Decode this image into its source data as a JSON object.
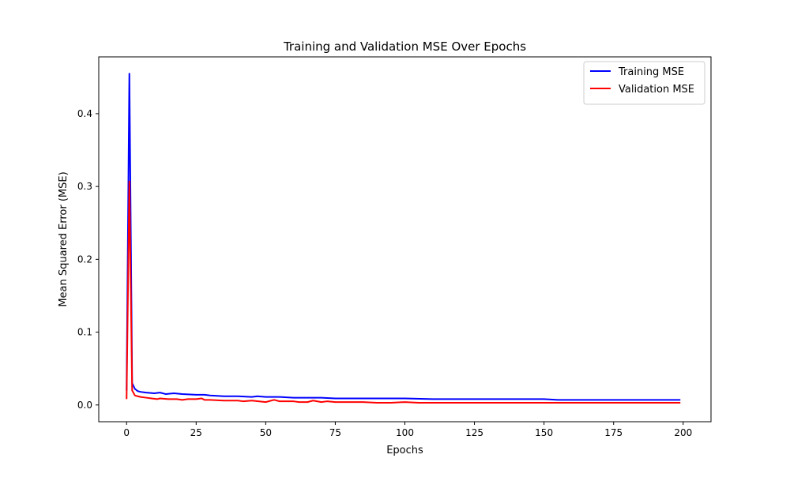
{
  "chart_data": {
    "type": "line",
    "title": "Training and Validation MSE Over Epochs",
    "xlabel": "Epochs",
    "ylabel": "Mean Squared Error (MSE)",
    "xlim": [
      -10,
      210
    ],
    "ylim": [
      -0.023,
      0.478
    ],
    "xticks": [
      0,
      25,
      50,
      75,
      100,
      125,
      150,
      175,
      200
    ],
    "yticks": [
      0.0,
      0.1,
      0.2,
      0.3,
      0.4
    ],
    "xtick_labels": [
      "0",
      "25",
      "50",
      "75",
      "100",
      "125",
      "150",
      "175",
      "200"
    ],
    "ytick_labels": [
      "0.0",
      "0.1",
      "0.2",
      "0.3",
      "0.4"
    ],
    "grid": false,
    "legend_position": "top-right",
    "series": [
      {
        "name": "Training MSE",
        "color": "#0000ff",
        "points": [
          [
            0,
            0.02
          ],
          [
            1,
            0.455
          ],
          [
            2,
            0.03
          ],
          [
            3,
            0.022
          ],
          [
            4,
            0.019
          ],
          [
            5,
            0.018
          ],
          [
            7,
            0.017
          ],
          [
            10,
            0.016
          ],
          [
            12,
            0.017
          ],
          [
            14,
            0.015
          ],
          [
            17,
            0.016
          ],
          [
            20,
            0.015
          ],
          [
            25,
            0.014
          ],
          [
            28,
            0.014
          ],
          [
            30,
            0.013
          ],
          [
            35,
            0.012
          ],
          [
            40,
            0.012
          ],
          [
            45,
            0.011
          ],
          [
            47,
            0.012
          ],
          [
            50,
            0.011
          ],
          [
            55,
            0.011
          ],
          [
            60,
            0.01
          ],
          [
            65,
            0.01
          ],
          [
            70,
            0.01
          ],
          [
            75,
            0.009
          ],
          [
            80,
            0.009
          ],
          [
            85,
            0.009
          ],
          [
            90,
            0.009
          ],
          [
            95,
            0.009
          ],
          [
            100,
            0.009
          ],
          [
            110,
            0.008
          ],
          [
            120,
            0.008
          ],
          [
            125,
            0.008
          ],
          [
            130,
            0.008
          ],
          [
            140,
            0.008
          ],
          [
            150,
            0.008
          ],
          [
            155,
            0.007
          ],
          [
            160,
            0.007
          ],
          [
            170,
            0.007
          ],
          [
            180,
            0.007
          ],
          [
            190,
            0.007
          ],
          [
            199,
            0.007
          ]
        ]
      },
      {
        "name": "Validation MSE",
        "color": "#ff0000",
        "points": [
          [
            0,
            0.008
          ],
          [
            1,
            0.307
          ],
          [
            2,
            0.02
          ],
          [
            3,
            0.013
          ],
          [
            4,
            0.012
          ],
          [
            5,
            0.011
          ],
          [
            7,
            0.01
          ],
          [
            9,
            0.009
          ],
          [
            11,
            0.008
          ],
          [
            12,
            0.009
          ],
          [
            15,
            0.008
          ],
          [
            18,
            0.008
          ],
          [
            20,
            0.007
          ],
          [
            22,
            0.008
          ],
          [
            25,
            0.008
          ],
          [
            27,
            0.009
          ],
          [
            28,
            0.007
          ],
          [
            30,
            0.007
          ],
          [
            35,
            0.006
          ],
          [
            40,
            0.006
          ],
          [
            42,
            0.005
          ],
          [
            45,
            0.006
          ],
          [
            50,
            0.004
          ],
          [
            53,
            0.007
          ],
          [
            55,
            0.005
          ],
          [
            60,
            0.005
          ],
          [
            62,
            0.004
          ],
          [
            65,
            0.004
          ],
          [
            67,
            0.006
          ],
          [
            70,
            0.004
          ],
          [
            72,
            0.005
          ],
          [
            75,
            0.004
          ],
          [
            80,
            0.004
          ],
          [
            85,
            0.004
          ],
          [
            90,
            0.003
          ],
          [
            95,
            0.003
          ],
          [
            100,
            0.004
          ],
          [
            105,
            0.003
          ],
          [
            110,
            0.003
          ],
          [
            115,
            0.003
          ],
          [
            120,
            0.003
          ],
          [
            125,
            0.003
          ],
          [
            130,
            0.003
          ],
          [
            140,
            0.003
          ],
          [
            150,
            0.003
          ],
          [
            155,
            0.003
          ],
          [
            160,
            0.003
          ],
          [
            170,
            0.003
          ],
          [
            180,
            0.003
          ],
          [
            190,
            0.003
          ],
          [
            199,
            0.003
          ]
        ]
      }
    ]
  }
}
